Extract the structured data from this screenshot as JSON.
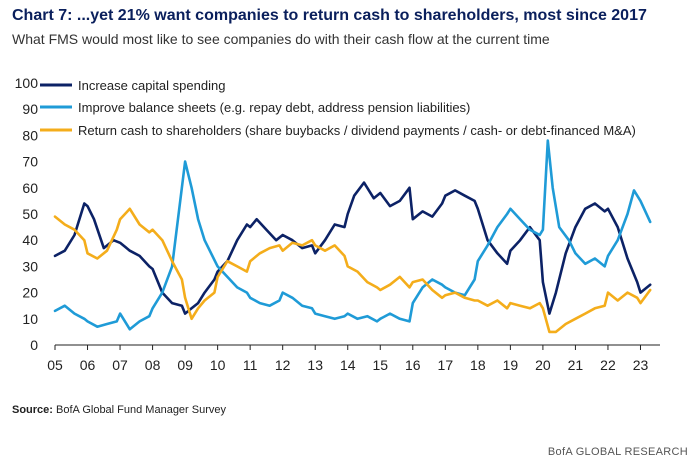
{
  "header": {
    "title": "Chart 7: ...yet 21% want companies to return cash to shareholders, most since 2017",
    "subtitle": "What FMS would most like to see companies do with their cash flow at the current time"
  },
  "footer": {
    "source_label": "Source:",
    "source_text": " BofA Global Fund Manager Survey",
    "brand": "BofA GLOBAL RESEARCH"
  },
  "chart_data": {
    "type": "line",
    "title": "What FMS would most like to see companies do with their cash flow at the current time",
    "xlabel": "",
    "ylabel": "",
    "xlim": [
      2005.0,
      2023.6
    ],
    "ylim": [
      0,
      100
    ],
    "yticks": [
      0,
      10,
      20,
      30,
      40,
      50,
      60,
      70,
      80,
      90,
      100
    ],
    "xtick_values": [
      2005,
      2006,
      2007,
      2008,
      2009,
      2010,
      2011,
      2012,
      2013,
      2014,
      2015,
      2016,
      2017,
      2018,
      2019,
      2020,
      2021,
      2022,
      2023
    ],
    "xtick_labels": [
      "05",
      "06",
      "07",
      "08",
      "09",
      "10",
      "11",
      "12",
      "13",
      "14",
      "15",
      "16",
      "17",
      "18",
      "19",
      "20",
      "21",
      "22",
      "23"
    ],
    "legend_position": "top-left",
    "series": [
      {
        "name": "Increase capital spending",
        "color": "#0c2266",
        "x": [
          2005.0,
          2005.3,
          2005.6,
          2005.9,
          2006.0,
          2006.2,
          2006.5,
          2006.8,
          2007.0,
          2007.3,
          2007.6,
          2007.9,
          2008.0,
          2008.3,
          2008.6,
          2008.9,
          2009.0,
          2009.2,
          2009.4,
          2009.6,
          2009.9,
          2010.0,
          2010.3,
          2010.6,
          2010.9,
          2011.0,
          2011.2,
          2011.5,
          2011.8,
          2012.0,
          2012.3,
          2012.6,
          2012.9,
          2013.0,
          2013.3,
          2013.6,
          2013.9,
          2014.0,
          2014.2,
          2014.5,
          2014.8,
          2015.0,
          2015.3,
          2015.6,
          2015.9,
          2016.0,
          2016.3,
          2016.6,
          2016.9,
          2017.0,
          2017.3,
          2017.6,
          2017.9,
          2018.0,
          2018.3,
          2018.6,
          2018.9,
          2019.0,
          2019.3,
          2019.6,
          2019.9,
          2020.0,
          2020.2,
          2020.4,
          2020.7,
          2021.0,
          2021.3,
          2021.6,
          2021.9,
          2022.0,
          2022.3,
          2022.6,
          2022.9,
          2023.0,
          2023.3
        ],
        "values": [
          34,
          36,
          42,
          54,
          53,
          48,
          37,
          40,
          39,
          36,
          34,
          30,
          29,
          20,
          16,
          15,
          12,
          14,
          16,
          20,
          25,
          28,
          32,
          40,
          46,
          45,
          48,
          44,
          40,
          42,
          40,
          37,
          38,
          35,
          40,
          46,
          45,
          50,
          57,
          62,
          56,
          58,
          53,
          55,
          60,
          48,
          51,
          49,
          54,
          57,
          59,
          57,
          55,
          52,
          40,
          35,
          31,
          36,
          40,
          45,
          40,
          24,
          12,
          20,
          35,
          45,
          52,
          54,
          51,
          52,
          45,
          33,
          24,
          20,
          23
        ]
      },
      {
        "name": "Improve balance sheets (e.g. repay debt, address pension liabilities)",
        "color": "#1f9bd7",
        "x": [
          2005.0,
          2005.3,
          2005.6,
          2005.9,
          2006.0,
          2006.3,
          2006.6,
          2006.9,
          2007.0,
          2007.3,
          2007.6,
          2007.9,
          2008.0,
          2008.3,
          2008.6,
          2008.8,
          2009.0,
          2009.2,
          2009.4,
          2009.6,
          2009.8,
          2010.0,
          2010.3,
          2010.6,
          2010.9,
          2011.0,
          2011.3,
          2011.6,
          2011.9,
          2012.0,
          2012.3,
          2012.6,
          2012.9,
          2013.0,
          2013.3,
          2013.6,
          2013.9,
          2014.0,
          2014.3,
          2014.6,
          2014.9,
          2015.0,
          2015.3,
          2015.6,
          2015.9,
          2016.0,
          2016.3,
          2016.6,
          2016.9,
          2017.0,
          2017.3,
          2017.6,
          2017.9,
          2018.0,
          2018.3,
          2018.6,
          2018.9,
          2019.0,
          2019.3,
          2019.6,
          2019.9,
          2020.0,
          2020.15,
          2020.3,
          2020.5,
          2020.8,
          2021.0,
          2021.3,
          2021.6,
          2021.9,
          2022.0,
          2022.3,
          2022.6,
          2022.8,
          2023.0,
          2023.3
        ],
        "values": [
          13,
          15,
          12,
          10,
          9,
          7,
          8,
          9,
          12,
          6,
          9,
          11,
          14,
          20,
          30,
          50,
          70,
          60,
          48,
          40,
          35,
          30,
          26,
          22,
          20,
          18,
          16,
          15,
          17,
          20,
          18,
          15,
          14,
          12,
          11,
          10,
          11,
          12,
          10,
          11,
          9,
          10,
          12,
          10,
          9,
          16,
          22,
          25,
          23,
          22,
          20,
          19,
          25,
          32,
          38,
          45,
          50,
          52,
          48,
          44,
          42,
          44,
          78,
          60,
          45,
          40,
          35,
          31,
          33,
          30,
          34,
          40,
          50,
          59,
          55,
          47
        ]
      },
      {
        "name": "Return cash to shareholders (share buybacks / dividend payments / cash- or debt-financed M&A)",
        "color": "#f4ad1b",
        "x": [
          2005.0,
          2005.3,
          2005.6,
          2005.9,
          2006.0,
          2006.3,
          2006.6,
          2006.9,
          2007.0,
          2007.3,
          2007.6,
          2007.9,
          2008.0,
          2008.3,
          2008.6,
          2008.9,
          2009.0,
          2009.2,
          2009.4,
          2009.6,
          2009.9,
          2010.0,
          2010.3,
          2010.6,
          2010.9,
          2011.0,
          2011.3,
          2011.6,
          2011.9,
          2012.0,
          2012.3,
          2012.6,
          2012.9,
          2013.0,
          2013.3,
          2013.6,
          2013.9,
          2014.0,
          2014.3,
          2014.6,
          2014.9,
          2015.0,
          2015.3,
          2015.6,
          2015.9,
          2016.0,
          2016.3,
          2016.6,
          2016.9,
          2017.0,
          2017.3,
          2017.6,
          2017.9,
          2018.0,
          2018.3,
          2018.6,
          2018.9,
          2019.0,
          2019.3,
          2019.6,
          2019.9,
          2020.0,
          2020.2,
          2020.4,
          2020.7,
          2021.0,
          2021.3,
          2021.6,
          2021.9,
          2022.0,
          2022.3,
          2022.6,
          2022.9,
          2023.0,
          2023.3
        ],
        "values": [
          49,
          46,
          44,
          40,
          35,
          33,
          36,
          44,
          48,
          52,
          46,
          43,
          44,
          40,
          32,
          25,
          18,
          10,
          14,
          17,
          20,
          26,
          32,
          30,
          28,
          32,
          35,
          37,
          38,
          36,
          39,
          38,
          40,
          38,
          36,
          38,
          34,
          30,
          28,
          24,
          22,
          21,
          23,
          26,
          22,
          24,
          25,
          21,
          18,
          19,
          20,
          18,
          17,
          17,
          15,
          17,
          14,
          16,
          15,
          14,
          16,
          14,
          5,
          5,
          8,
          10,
          12,
          14,
          15,
          20,
          17,
          20,
          18,
          16,
          21
        ]
      }
    ]
  }
}
